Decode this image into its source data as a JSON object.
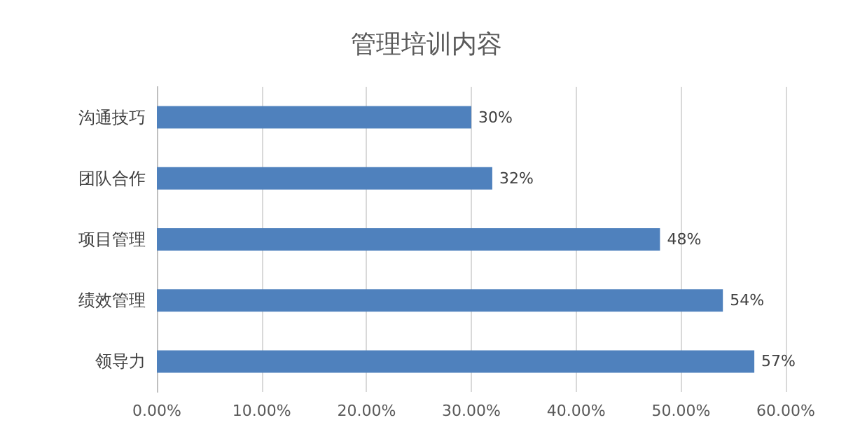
{
  "chart_data": {
    "type": "bar",
    "orientation": "horizontal",
    "title": "管理培训内容",
    "categories": [
      "沟通技巧",
      "团队合作",
      "项目管理",
      "绩效管理",
      "领导力"
    ],
    "values": [
      30,
      32,
      48,
      54,
      57
    ],
    "value_labels": [
      "30%",
      "32%",
      "48%",
      "54%",
      "57%"
    ],
    "color": "#4f81bd",
    "xlim": [
      0,
      60
    ],
    "xticks": [
      {
        "value": 0,
        "label": "0.00%"
      },
      {
        "value": 10,
        "label": "10.00%"
      },
      {
        "value": 20,
        "label": "20.00%"
      },
      {
        "value": 30,
        "label": "30.00%"
      },
      {
        "value": 40,
        "label": "40.00%"
      },
      {
        "value": 50,
        "label": "50.00%"
      },
      {
        "value": 60,
        "label": "60.00%"
      }
    ],
    "grid": "x"
  }
}
